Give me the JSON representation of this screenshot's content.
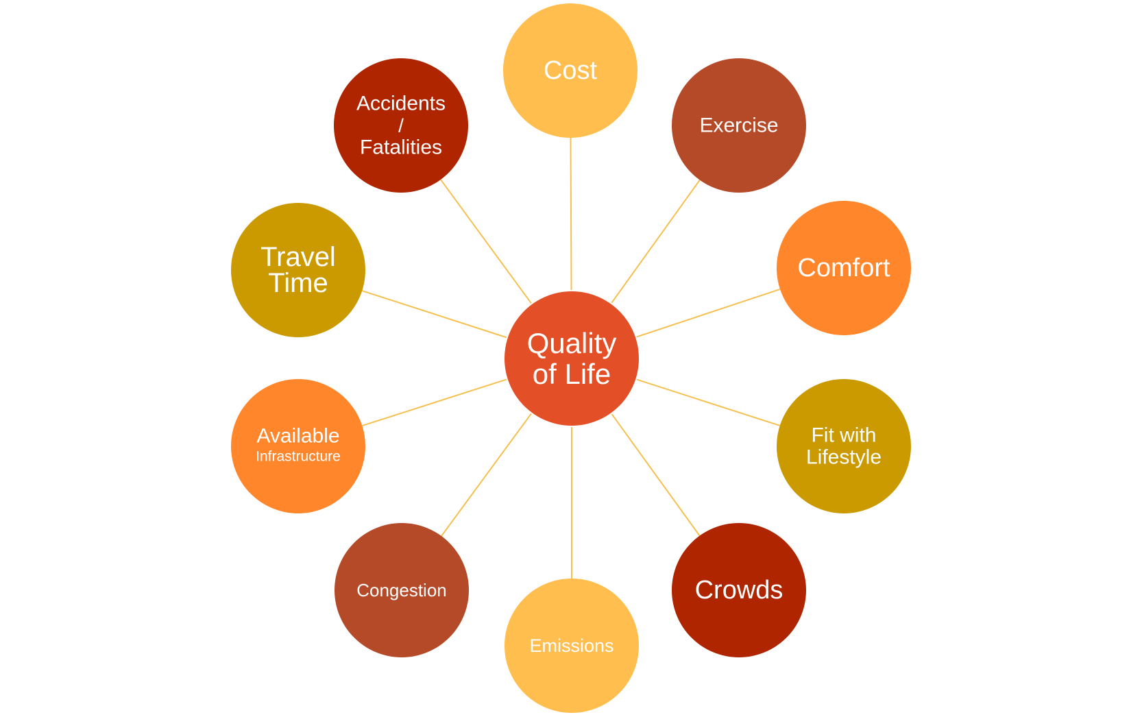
{
  "center": {
    "lines": [
      "Quality",
      "of Life"
    ],
    "color": "#E34F26"
  },
  "connector_color": "#F5C050",
  "nodes": [
    {
      "id": "cost",
      "lines": [
        "Cost"
      ],
      "color": "#FFBE4D"
    },
    {
      "id": "exercise",
      "lines": [
        "Exercise"
      ],
      "color": "#B54A28"
    },
    {
      "id": "comfort",
      "lines": [
        "Comfort"
      ],
      "color": "#FF862A"
    },
    {
      "id": "fit-with-lifestyle",
      "lines": [
        "Fit with",
        "Lifestyle"
      ],
      "color": "#CA9A00"
    },
    {
      "id": "crowds",
      "lines": [
        "Crowds"
      ],
      "color": "#AE2500"
    },
    {
      "id": "emissions",
      "lines": [
        "Emissions"
      ],
      "color": "#FFBE4D"
    },
    {
      "id": "congestion",
      "lines": [
        "Congestion"
      ],
      "color": "#B54A28"
    },
    {
      "id": "available-infrastructure",
      "lines": [
        "Available",
        "Infrastructure"
      ],
      "color": "#FF862A"
    },
    {
      "id": "travel-time",
      "lines": [
        "Travel",
        "Time"
      ],
      "color": "#CA9A00"
    },
    {
      "id": "accidents-fatalities",
      "lines": [
        "Accidents",
        "/",
        "Fatalities"
      ],
      "color": "#AE2500"
    }
  ]
}
